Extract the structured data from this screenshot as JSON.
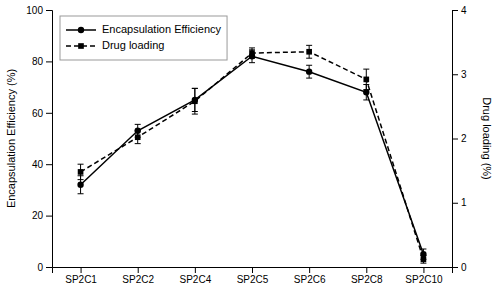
{
  "chart_data": {
    "type": "line",
    "categories": [
      "SP2C1",
      "SP2C2",
      "SP2C4",
      "SP2C5",
      "SP2C6",
      "SP2C8",
      "SP2C10"
    ],
    "ylabel": "Encapsulation Efficiency (%)",
    "y2label": "Drug loading (%)",
    "ylim": [
      0,
      100
    ],
    "yticks": [
      0,
      20,
      40,
      60,
      80,
      100
    ],
    "y2lim": [
      0,
      4
    ],
    "y2ticks": [
      0,
      1,
      2,
      3,
      4
    ],
    "legend": "upper left",
    "grid": false,
    "series": [
      {
        "name": "Encapsulation Efficiency",
        "color": "#000000",
        "marker": "circle",
        "line_style": "solid",
        "values": [
          32,
          53,
          65,
          82,
          76,
          68,
          5
        ],
        "errors": [
          3.5,
          2.5,
          4.5,
          2.5,
          2.5,
          3.0,
          2.0
        ]
      },
      {
        "name": "Drug loading",
        "axis": "y2",
        "color": "#000000",
        "marker": "square",
        "line_style": "dashed",
        "values": [
          1.48,
          2.02,
          2.58,
          3.33,
          3.35,
          2.92,
          0.12
        ],
        "errors": [
          0.12,
          0.1,
          0.2,
          0.08,
          0.1,
          0.16,
          0.06
        ]
      }
    ]
  }
}
